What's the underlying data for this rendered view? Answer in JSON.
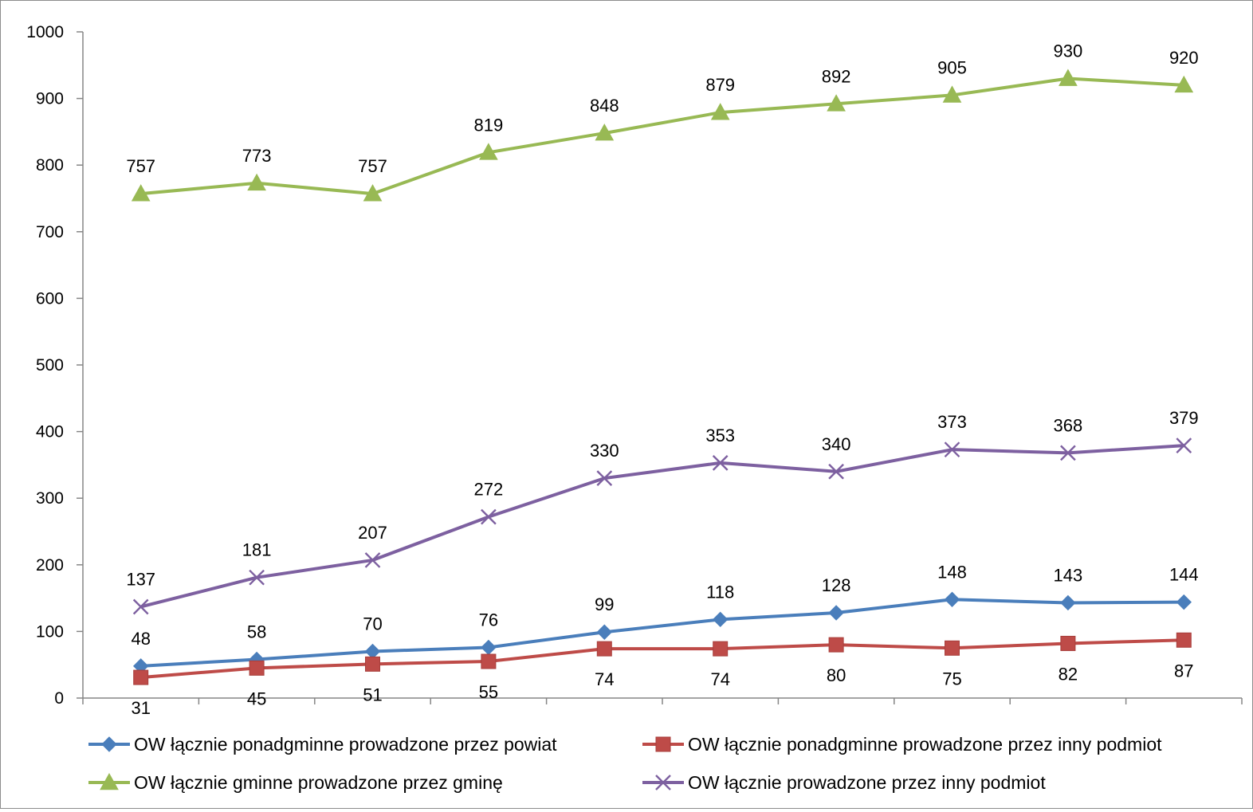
{
  "chart_data": {
    "type": "line",
    "title": "",
    "xlabel": "",
    "ylabel": "",
    "ylim": [
      0,
      1000
    ],
    "yticks": [
      0,
      100,
      200,
      300,
      400,
      500,
      600,
      700,
      800,
      900,
      1000
    ],
    "categories": [
      "",
      "",
      "",
      "",
      "",
      "",
      "",
      "",
      "",
      ""
    ],
    "grid": false,
    "legend_position": "bottom",
    "series": [
      {
        "name": "OW łącznie ponadgminne prowadzone przez powiat",
        "color": "#4a7ebb",
        "marker": "diamond",
        "label_position": "above",
        "values": [
          48,
          58,
          70,
          76,
          99,
          118,
          128,
          148,
          143,
          144
        ]
      },
      {
        "name": "OW łącznie ponadgminne prowadzone przez inny podmiot",
        "color": "#be4b48",
        "marker": "square",
        "label_position": "below",
        "values": [
          31,
          45,
          51,
          55,
          74,
          74,
          80,
          75,
          82,
          87
        ]
      },
      {
        "name": "OW łącznie gminne prowadzone przez gminę",
        "color": "#98b954",
        "marker": "triangle",
        "label_position": "above",
        "values": [
          757,
          773,
          757,
          819,
          848,
          879,
          892,
          905,
          930,
          920
        ]
      },
      {
        "name": "OW łącznie prowadzone przez inny podmiot",
        "color": "#7d60a0",
        "marker": "x",
        "label_position": "above",
        "values": [
          137,
          181,
          207,
          272,
          330,
          353,
          340,
          373,
          368,
          379
        ]
      }
    ]
  }
}
